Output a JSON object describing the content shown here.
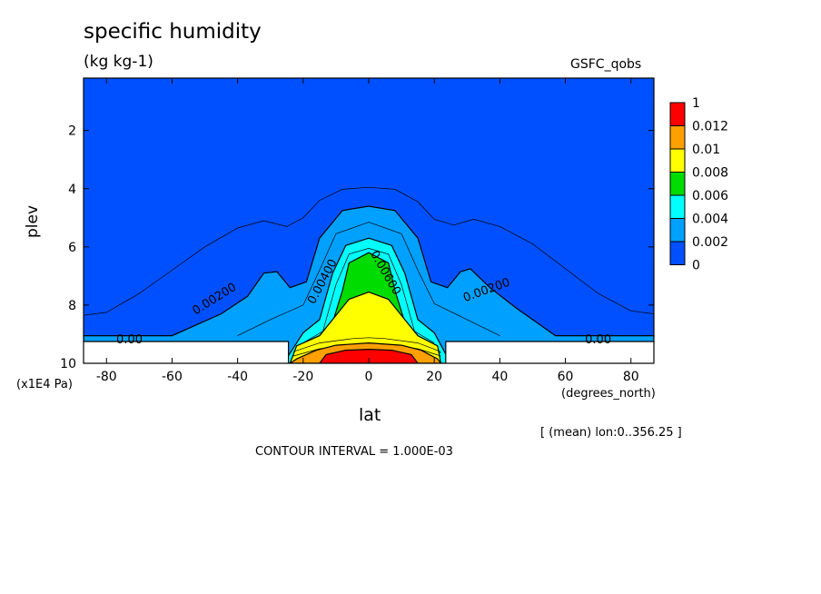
{
  "title": "specific humidity",
  "units": "(kg kg-1)",
  "dataset": "GSFC_qobs",
  "x_units": "(degrees_north)",
  "y_units": "(x1E4 Pa)",
  "x_label": "lat",
  "y_label": "plev",
  "lon_note": "[ (mean) lon:0..356.25 ]",
  "contour_interval": "CONTOUR INTERVAL = 1.000E-03",
  "chart_data": {
    "type": "contour",
    "title": "specific humidity",
    "xlabel": "lat",
    "ylabel": "plev",
    "xlim": [
      -87,
      87
    ],
    "ylim": [
      0.2,
      10
    ],
    "y_inverted": true,
    "x_ticks": [
      -80,
      -60,
      -40,
      -20,
      0,
      20,
      40,
      60,
      80
    ],
    "y_ticks": [
      2,
      4,
      6,
      8,
      10
    ],
    "contour_labels": [
      {
        "text": "0.00",
        "lat": -73,
        "plev": 9.2
      },
      {
        "text": "0.00",
        "lat": 70,
        "plev": 9.2
      },
      {
        "text": "0.00200",
        "lat": -47,
        "plev": 7.8
      },
      {
        "text": "0.00200",
        "lat": 36,
        "plev": 7.5
      },
      {
        "text": "0.00400",
        "lat": -14,
        "plev": 7.2
      },
      {
        "text": "0.00600",
        "lat": 5,
        "plev": 6.9
      }
    ],
    "colorbar": {
      "labels": [
        "1",
        "0.012",
        "0.01",
        "0.008",
        "0.006",
        "0.004",
        "0.002",
        "0"
      ],
      "colors": [
        "#ff0000",
        "#ffa000",
        "#ffff00",
        "#00dc00",
        "#00ffff",
        "#00a0ff",
        "#0050ff"
      ]
    },
    "fill_colors": {
      "l0": "#0050ff",
      "l1": "#00a0ff",
      "l2": "#00ffff",
      "l3": "#00dc00",
      "l4": "#ffff00",
      "l5": "#ffa000",
      "l6": "#ff0000",
      "missing": "#ffffff"
    },
    "contour_interval": 0.001
  }
}
